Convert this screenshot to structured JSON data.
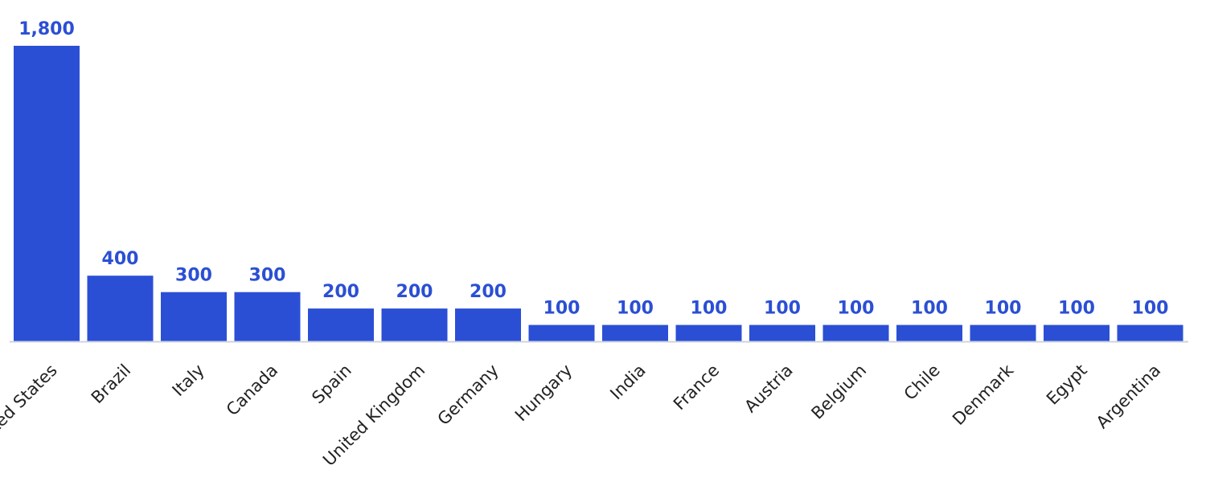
{
  "chart_data": {
    "type": "bar",
    "categories": [
      "United States",
      "Brazil",
      "Italy",
      "Canada",
      "Spain",
      "United Kingdom",
      "Germany",
      "Hungary",
      "India",
      "France",
      "Austria",
      "Belgium",
      "Chile",
      "Denmark",
      "Egypt",
      "Argentina"
    ],
    "values": [
      1800,
      400,
      300,
      300,
      200,
      200,
      200,
      100,
      100,
      100,
      100,
      100,
      100,
      100,
      100,
      100
    ],
    "value_labels": [
      "1,800",
      "400",
      "300",
      "300",
      "200",
      "200",
      "200",
      "100",
      "100",
      "100",
      "100",
      "100",
      "100",
      "100",
      "100",
      "100"
    ],
    "title": "",
    "xlabel": "",
    "ylabel": "",
    "ylim": [
      0,
      1800
    ],
    "grid": false,
    "legend": "none",
    "colors": {
      "bar": "#2b4fd4",
      "value_label": "#2b4fd4",
      "tick_label": "#222222",
      "axis_line": "#cfd3dc"
    }
  }
}
